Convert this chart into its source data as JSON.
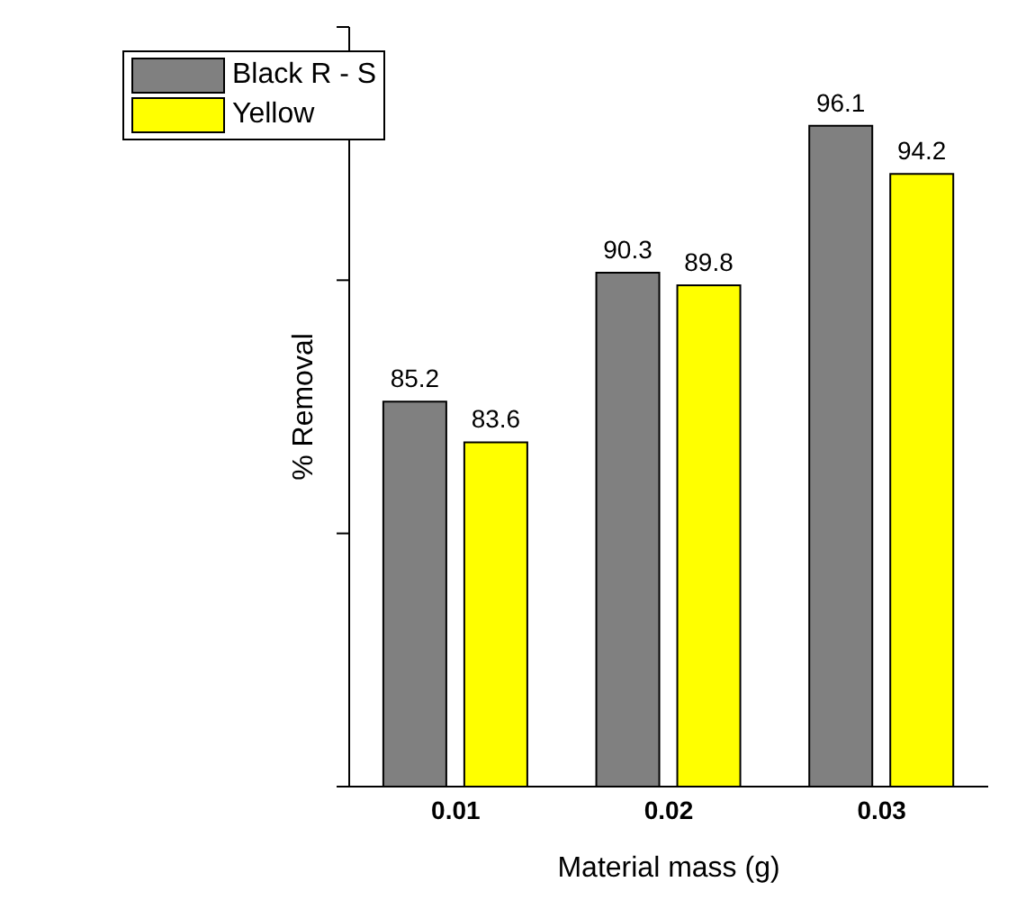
{
  "chart_data": {
    "type": "bar",
    "xlabel": "Material mass (g)",
    "ylabel": "% Removal",
    "categories": [
      "0.01",
      "0.02",
      "0.03"
    ],
    "series": [
      {
        "name": "Black R - S",
        "color": "#808080",
        "values": [
          85.2,
          90.3,
          96.1
        ]
      },
      {
        "name": "Yellow",
        "color": "#ffff00",
        "values": [
          83.6,
          89.8,
          94.2
        ]
      }
    ],
    "ylim": [
      70,
      100
    ],
    "yticks": [
      {
        "value": 70,
        "label": null
      },
      {
        "value": 80,
        "label": null
      },
      {
        "value": 90,
        "label": null
      },
      {
        "value": 100,
        "label": null
      }
    ],
    "tick_labels": "x",
    "data_labels": true,
    "legend": "top left",
    "grid": false
  }
}
